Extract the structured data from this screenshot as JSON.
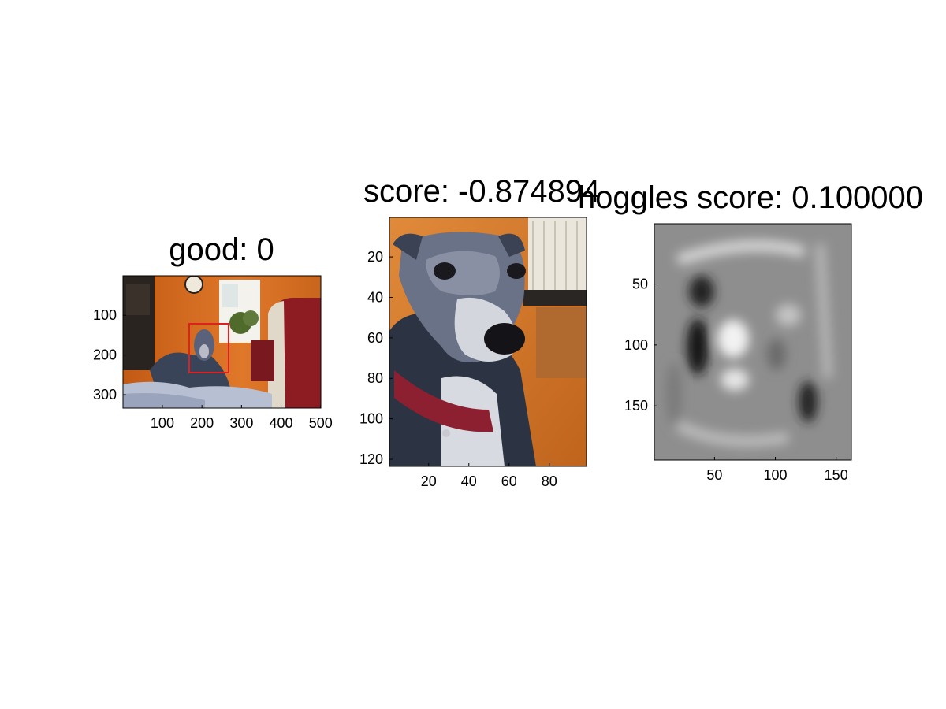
{
  "panels": [
    {
      "title": "good: 0",
      "xticks": [
        "100",
        "200",
        "300",
        "400",
        "500"
      ],
      "yticks": [
        "100",
        "200",
        "300"
      ],
      "xlim": [
        1,
        500
      ],
      "ylim": [
        1,
        333
      ]
    },
    {
      "title": "score: -0.874894",
      "xticks": [
        "20",
        "40",
        "60",
        "80"
      ],
      "yticks": [
        "20",
        "40",
        "60",
        "80",
        "100",
        "120"
      ],
      "xlim": [
        1,
        98
      ],
      "ylim": [
        1,
        123
      ]
    },
    {
      "title": "hoggles score: 0.100000",
      "xticks": [
        "50",
        "100",
        "150"
      ],
      "yticks": [
        "50",
        "100",
        "150"
      ],
      "xlim": [
        1,
        162
      ],
      "ylim": [
        1,
        194
      ]
    }
  ],
  "chart_data": [
    {
      "type": "image",
      "title": "good: 0",
      "x_ticks": [
        100,
        200,
        300,
        400,
        500
      ],
      "y_ticks": [
        100,
        200,
        300
      ],
      "xlim": [
        1,
        500
      ],
      "ylim": [
        1,
        333
      ],
      "bounding_box_color": "#e02020"
    },
    {
      "type": "image",
      "title": "score: -0.874894",
      "x_ticks": [
        20,
        40,
        60,
        80
      ],
      "y_ticks": [
        20,
        40,
        60,
        80,
        100,
        120
      ],
      "xlim": [
        1,
        98
      ],
      "ylim": [
        1,
        123
      ]
    },
    {
      "type": "heatmap",
      "title": "hoggles score: 0.100000",
      "colormap": "gray",
      "x_ticks": [
        50,
        100,
        150
      ],
      "y_ticks": [
        50,
        100,
        150
      ],
      "xlim": [
        1,
        162
      ],
      "ylim": [
        1,
        194
      ]
    }
  ]
}
